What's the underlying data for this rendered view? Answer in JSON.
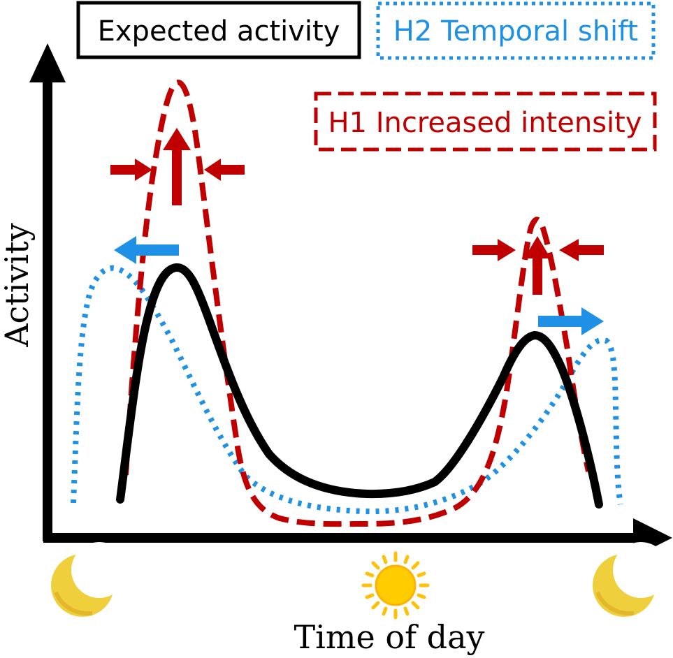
{
  "legend": {
    "expected": "Expected activity",
    "h2": "H2 Temporal shift",
    "h1": "H1 Increased intensity"
  },
  "axes": {
    "y_label": "Activity",
    "x_label": "Time of day"
  },
  "colors": {
    "expected": "#000000",
    "h1": "#c00000",
    "h2": "#1e90e6",
    "moon": "#f0cf3c",
    "sun": "#ffcc00"
  },
  "icons": [
    "moon-icon",
    "sun-icon",
    "moon-icon"
  ]
}
